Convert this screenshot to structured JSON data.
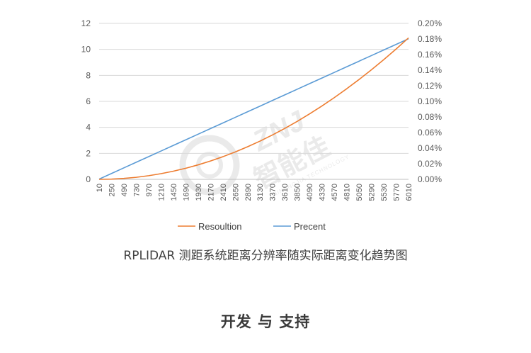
{
  "chart_data": {
    "type": "line",
    "x": [
      10,
      250,
      490,
      730,
      970,
      1210,
      1450,
      1690,
      1930,
      2170,
      2410,
      2650,
      2890,
      3130,
      3370,
      3610,
      3850,
      4090,
      4330,
      4570,
      4810,
      5050,
      5290,
      5530,
      5770,
      6010
    ],
    "x_tick_labels": [
      "10",
      "250",
      "490",
      "730",
      "970",
      "1210",
      "1450",
      "1690",
      "1930",
      "2170",
      "2410",
      "2650",
      "2890",
      "3130",
      "3370",
      "3610",
      "3850",
      "4090",
      "4330",
      "4570",
      "4810",
      "5050",
      "5290",
      "5530",
      "5770",
      "6010"
    ],
    "ylim": [
      0,
      12
    ],
    "y_ticks": [
      0,
      2,
      4,
      6,
      8,
      10,
      12
    ],
    "y_tick_labels": [
      "0",
      "2",
      "4",
      "6",
      "8",
      "10",
      "12"
    ],
    "y2lim": [
      0,
      0.2
    ],
    "y2_ticks": [
      0,
      0.02,
      0.04,
      0.06,
      0.08,
      0.1,
      0.12,
      0.14,
      0.16,
      0.18,
      0.2
    ],
    "y2_tick_labels": [
      "0.00%",
      "0.02%",
      "0.04%",
      "0.06%",
      "0.08%",
      "0.10%",
      "0.12%",
      "0.14%",
      "0.16%",
      "0.18%",
      "0.20%"
    ],
    "grid": "horizontal",
    "legend_position": "bottom",
    "series": [
      {
        "name": "Resoultion",
        "axis": "left",
        "color": "#ED7D31",
        "values": [
          0.0003,
          0.018,
          0.07,
          0.157,
          0.279,
          0.436,
          0.627,
          0.853,
          1.115,
          1.411,
          1.742,
          2.107,
          2.508,
          2.943,
          3.413,
          3.919,
          4.458,
          5.033,
          5.643,
          6.287,
          6.966,
          7.68,
          8.429,
          9.212,
          10.031,
          10.885
        ]
      },
      {
        "name": "Precent",
        "axis": "right",
        "color": "#5B9BD5",
        "values": [
          0.0003,
          0.0075,
          0.0147,
          0.0219,
          0.0291,
          0.0363,
          0.0435,
          0.0507,
          0.0579,
          0.0651,
          0.0723,
          0.0795,
          0.0867,
          0.0939,
          0.1011,
          0.1083,
          0.1155,
          0.1227,
          0.1299,
          0.1371,
          0.1443,
          0.1515,
          0.1587,
          0.1659,
          0.1731,
          0.1803
        ]
      }
    ]
  },
  "caption": "RPLIDAR 测距系统距离分辨率随实际距离变化趋势图",
  "section_heading": "开发 与 支持",
  "watermark": {
    "logo_text": "ZNJ",
    "brand_cn": "智能佳",
    "brand_en": "ZHINENGJIA TECHNOLOGY",
    "color": "#d9d9d9"
  }
}
